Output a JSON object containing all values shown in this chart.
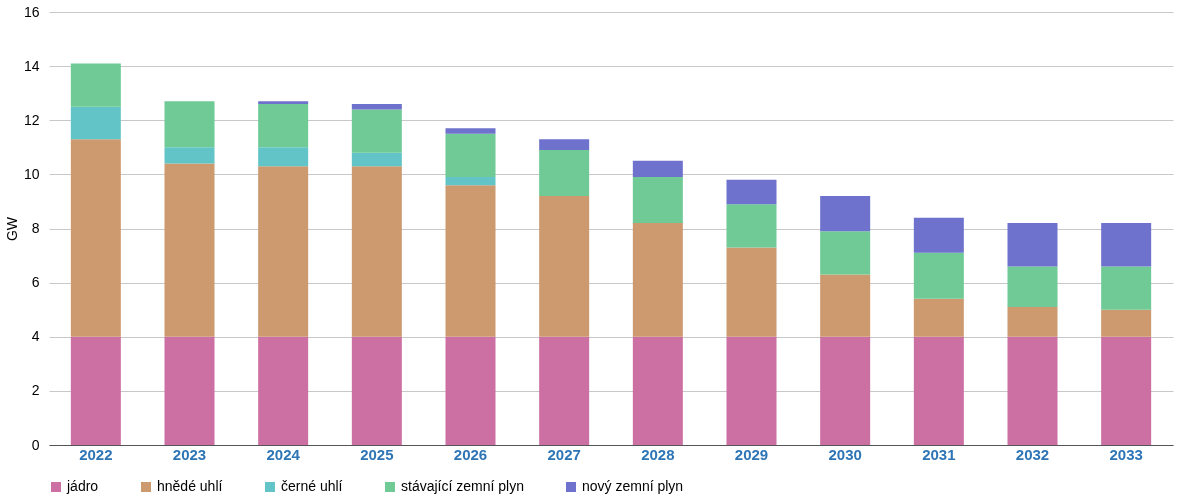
{
  "chart_data": {
    "type": "bar",
    "stacked": true,
    "ylabel": "GW",
    "categories": [
      "2022",
      "2023",
      "2024",
      "2025",
      "2026",
      "2027",
      "2028",
      "2029",
      "2030",
      "2031",
      "2032",
      "2033"
    ],
    "series": [
      {
        "name": "jádro",
        "color": "#cc6fa3",
        "values": [
          4,
          4,
          4,
          4,
          4,
          4,
          4,
          4,
          4,
          4,
          4,
          4
        ]
      },
      {
        "name": "hnědé uhlí",
        "color": "#cc9a6e",
        "values": [
          7.3,
          6.4,
          6.3,
          6.3,
          5.6,
          5.2,
          4.2,
          3.3,
          2.3,
          1.4,
          1.1,
          1.0
        ]
      },
      {
        "name": "černé uhlí",
        "color": "#63c4c8",
        "values": [
          1.2,
          0.6,
          0.7,
          0.5,
          0.3,
          0,
          0,
          0,
          0,
          0,
          0,
          0
        ]
      },
      {
        "name": "stávající zemní plyn",
        "color": "#6fca96",
        "values": [
          1.6,
          1.7,
          1.6,
          1.6,
          1.6,
          1.7,
          1.7,
          1.6,
          1.6,
          1.7,
          1.5,
          1.6
        ]
      },
      {
        "name": "nový zemní plyn",
        "color": "#6e72cc",
        "values": [
          0,
          0,
          0.1,
          0.2,
          0.2,
          0.4,
          0.6,
          0.9,
          1.3,
          1.3,
          1.6,
          1.6
        ]
      }
    ],
    "ylim": [
      0,
      16
    ],
    "yticks": [
      0,
      2,
      4,
      6,
      8,
      10,
      12,
      14,
      16
    ],
    "grid": "y",
    "legend": "bottom"
  }
}
